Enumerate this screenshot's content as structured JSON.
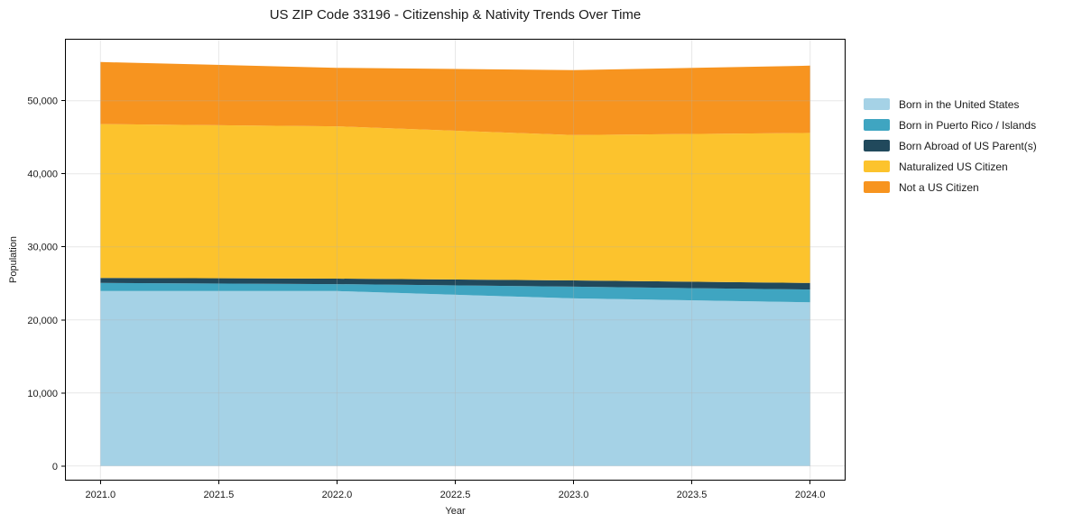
{
  "chart_data": {
    "type": "area",
    "stacked": true,
    "title": "US ZIP Code 33196 - Citizenship & Nativity Trends Over Time",
    "xlabel": "Year",
    "ylabel": "Population",
    "x": [
      2021,
      2022,
      2023,
      2024
    ],
    "series": [
      {
        "name": "Born in the United States",
        "color": "#a5d2e6",
        "values": [
          23950,
          23950,
          22950,
          22400
        ]
      },
      {
        "name": "Born in Puerto Rico / Islands",
        "color": "#3fa5c1",
        "values": [
          1100,
          950,
          1600,
          1750
        ]
      },
      {
        "name": "Born Abroad of US Parent(s)",
        "color": "#21495c",
        "values": [
          700,
          750,
          850,
          900
        ]
      },
      {
        "name": "Naturalized US Citizen",
        "color": "#fcc32d",
        "values": [
          21050,
          20850,
          19900,
          20550
        ]
      },
      {
        "name": "Not a US Citizen",
        "color": "#f7941f",
        "values": [
          8500,
          8000,
          8900,
          9200
        ]
      }
    ],
    "totals": [
      55300,
      54500,
      54200,
      54800
    ],
    "xticks": {
      "values": [
        2021.0,
        2021.5,
        2022.0,
        2022.5,
        2023.0,
        2023.5,
        2024.0
      ],
      "labels": [
        "2021.0",
        "2021.5",
        "2022.0",
        "2022.5",
        "2023.0",
        "2023.5",
        "2024.0"
      ]
    },
    "yticks": {
      "values": [
        0,
        10000,
        20000,
        30000,
        40000,
        50000
      ],
      "labels": [
        "0",
        "10,000",
        "20,000",
        "30,000",
        "40,000",
        "50,000"
      ]
    },
    "xlim": [
      2020.85,
      2024.15
    ],
    "ylim": [
      -2000,
      58480
    ],
    "grid": true,
    "grid_color": "#b0b0b0",
    "grid_opacity": 0.3,
    "legend_position": "right-outside"
  }
}
